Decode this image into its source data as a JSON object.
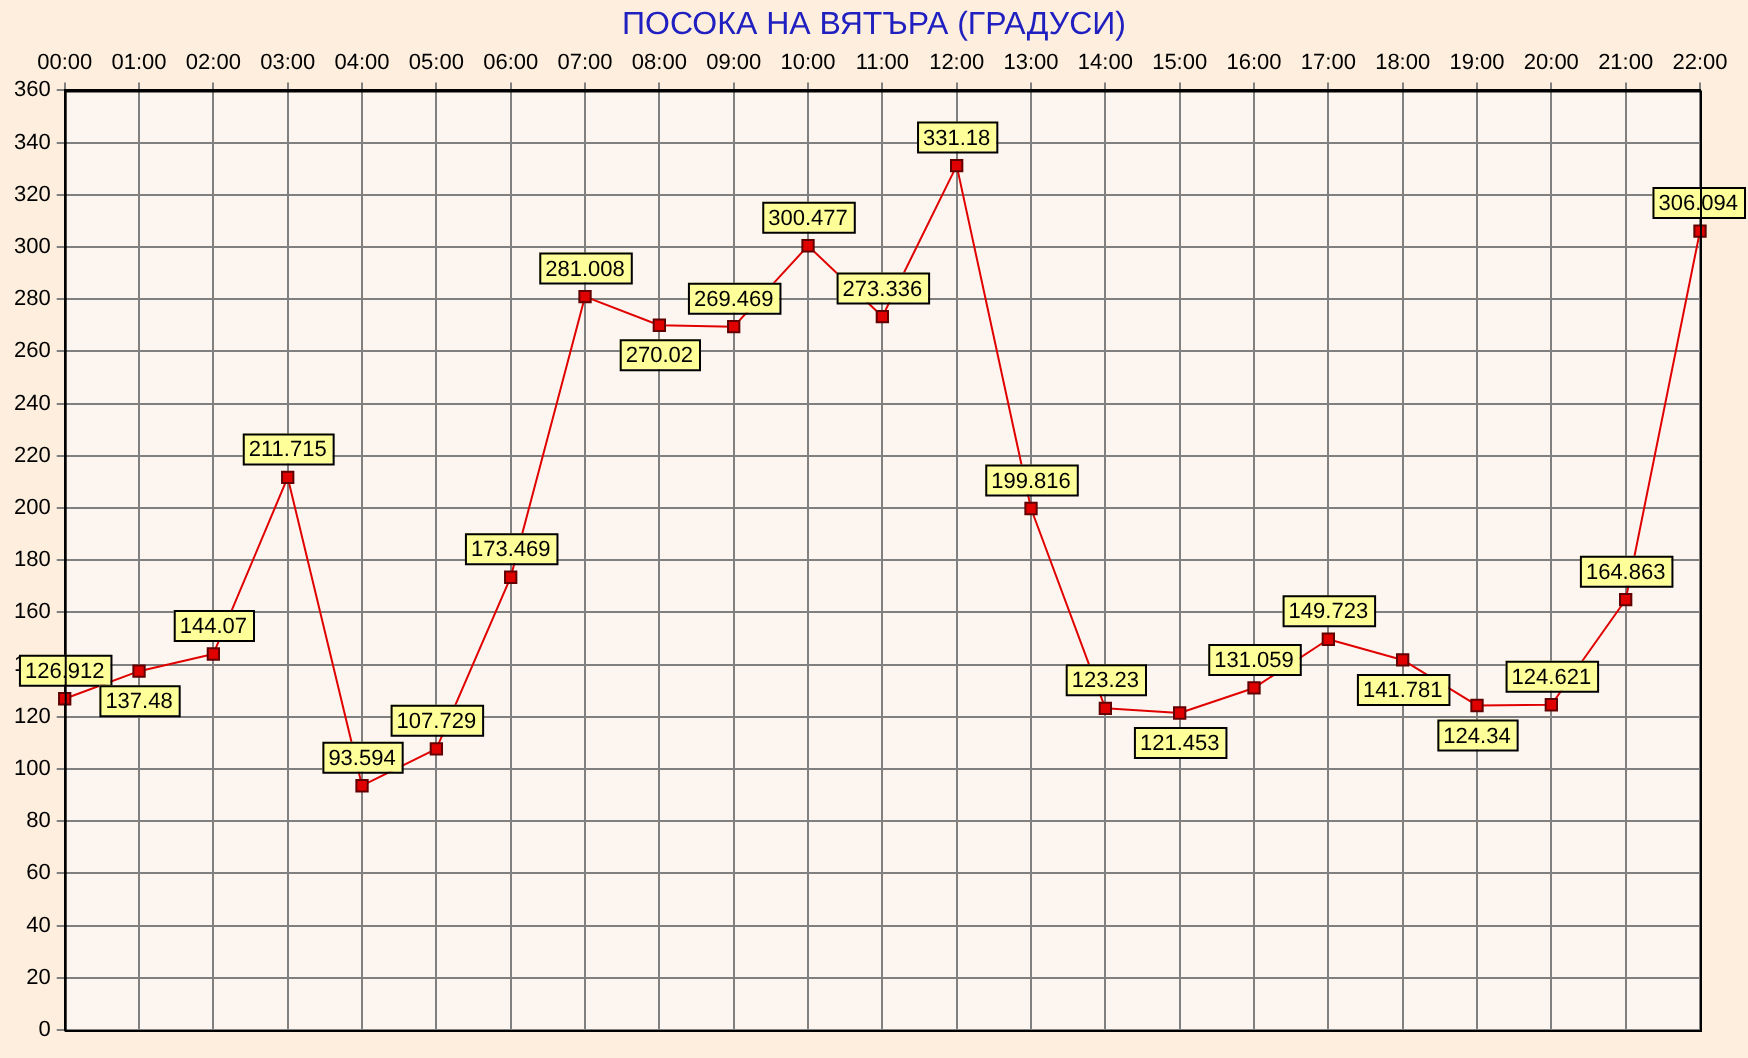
{
  "chart_data": {
    "type": "line",
    "title": "ПОСОКА НА ВЯТЪРА    (ГРАДУСИ)",
    "categories": [
      "00:00",
      "01:00",
      "02:00",
      "03:00",
      "04:00",
      "05:00",
      "06:00",
      "07:00",
      "08:00",
      "09:00",
      "10:00",
      "11:00",
      "12:00",
      "13:00",
      "14:00",
      "15:00",
      "16:00",
      "17:00",
      "18:00",
      "19:00",
      "20:00",
      "21:00",
      "22:00"
    ],
    "series": [
      {
        "color": "#e00000",
        "values": [
          126.912,
          137.48,
          144.07,
          211.715,
          93.594,
          107.729,
          173.469,
          281.008,
          270.02,
          269.469,
          300.477,
          273.336,
          331.18,
          199.816,
          123.23,
          121.453,
          131.059,
          149.723,
          141.781,
          124.34,
          124.621,
          164.863,
          306.094
        ]
      }
    ],
    "ylim": [
      0,
      360
    ],
    "yticks": [
      0,
      20,
      40,
      60,
      80,
      100,
      120,
      140,
      160,
      180,
      200,
      220,
      240,
      260,
      280,
      300,
      320,
      340,
      360
    ],
    "grid": true,
    "legend": false,
    "marker": "square",
    "line_style": "solid",
    "data_labels": true
  }
}
